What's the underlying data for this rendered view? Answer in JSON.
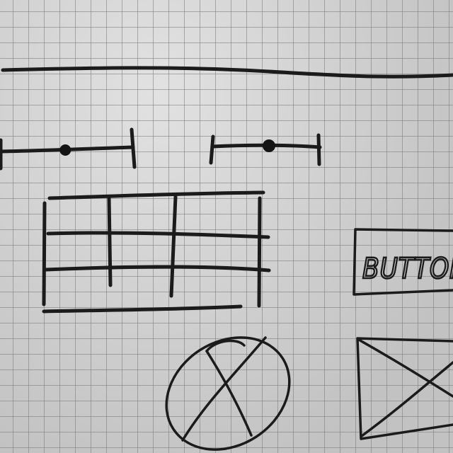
{
  "wireframe": {
    "button": {
      "label": "BUTTON"
    },
    "slider_1": {
      "value": 0.55
    },
    "slider_2": {
      "value": 0.52
    },
    "table": {
      "rows": 3,
      "columns": 3
    }
  }
}
